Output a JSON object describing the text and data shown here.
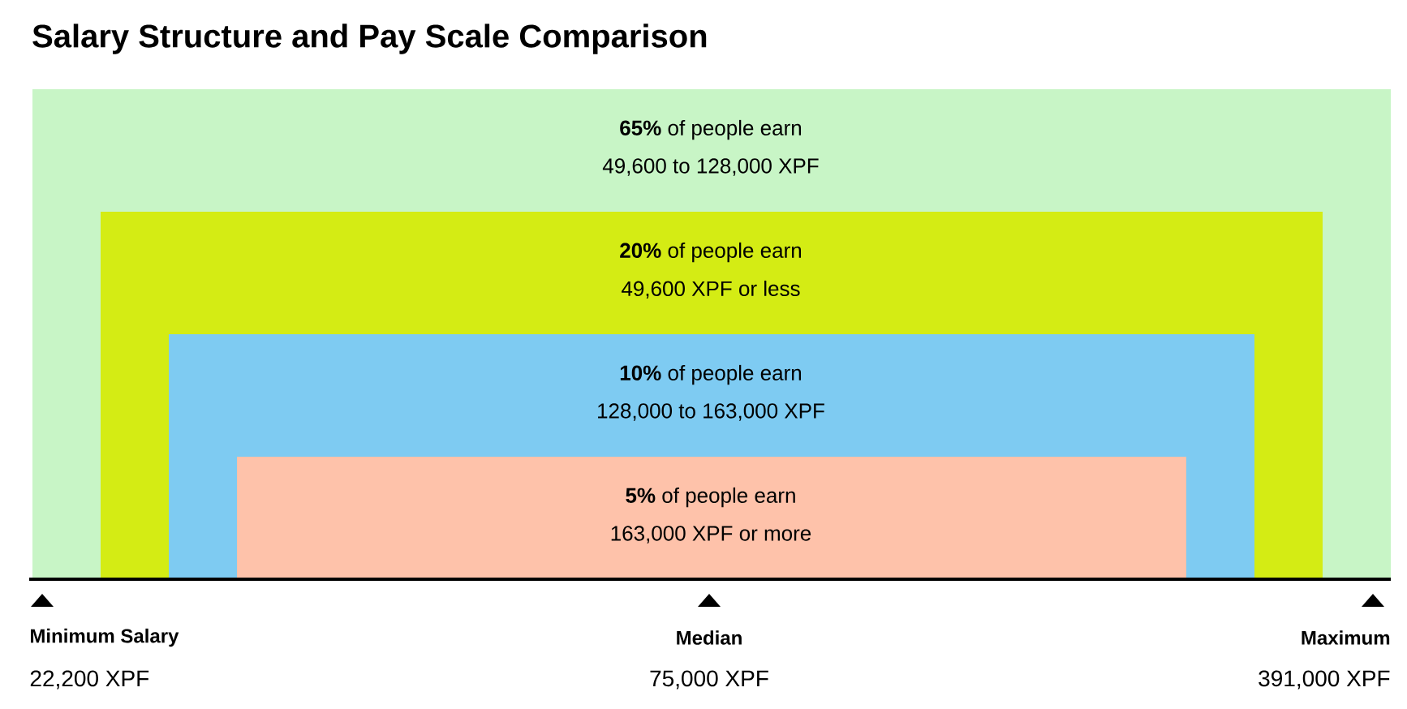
{
  "chart_data": {
    "type": "other",
    "title": "Salary Structure and Pay Scale Comparison",
    "categories": [
      "**%** of people earn",
      "**%** of people earn",
      "**%** of people earn",
      "**%** of people earn"
    ],
    "values": [
      65,
      20,
      10,
      5
    ],
    "data_labels": true,
    "colors": [
      "#c8f5c6",
      "#d4ec14",
      "#7ecbf2",
      "#fec2aa"
    ],
    "annotations": [
      "49,600 to 128,000 XPF",
      "49,600 XPF or less",
      "128,000 to 163,000 XPF",
      "163,000 XPF or more",
      "Minimum Salary",
      "22,200 XPF",
      "Median",
      "75,000 XPF",
      "Maximum",
      "391,000 XPF"
    ]
  }
}
